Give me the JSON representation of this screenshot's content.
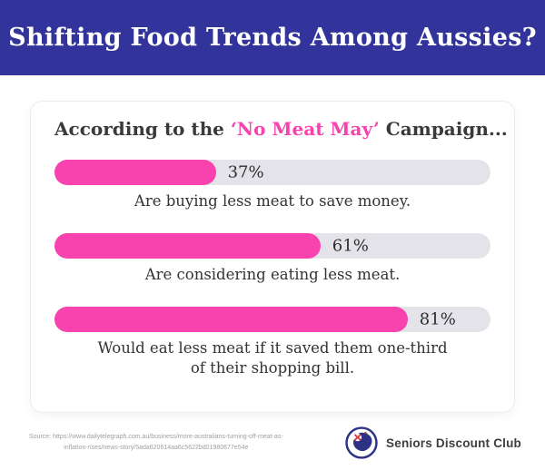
{
  "header": {
    "title": "Shifting Food Trends Among Aussies?",
    "bg_color": "#32339B",
    "text_color": "#FFFFFF"
  },
  "card": {
    "heading": {
      "prefix": "According to the ",
      "highlight": "‘No Meat May’",
      "suffix": " Campaign...",
      "highlight_color": "#F843AF",
      "text_color": "#3A3A3A"
    },
    "bars": [
      {
        "percent": 37,
        "label": "37%",
        "caption": "Are buying less meat to save money."
      },
      {
        "percent": 61,
        "label": "61%",
        "caption": "Are considering eating less meat."
      },
      {
        "percent": 81,
        "label": "81%",
        "caption": "Would eat less meat if it saved them one-third\nof their shopping bill."
      }
    ],
    "bar_color": "#F843AF",
    "track_color": "#E5E3EA"
  },
  "footer": {
    "source_line1": "Source: https://www.dailytelegraph.com.au/business/more-australians-turning-off-meat-as-",
    "source_line2": "inflation-rises/news-story/5ada620614aa6c5622bd01980677e54e",
    "brand": "Seniors Discount Club",
    "logo_colors": {
      "navy": "#2D3384",
      "red": "#D93A3E"
    }
  },
  "chart_data": {
    "type": "bar",
    "orientation": "horizontal",
    "title": "Shifting Food Trends Among Aussies?",
    "subtitle": "According to the ‘No Meat May’ Campaign...",
    "categories": [
      "Are buying less meat to save money.",
      "Are considering eating less meat.",
      "Would eat less meat if it saved them one-third of their shopping bill."
    ],
    "values": [
      37,
      61,
      81
    ],
    "unit": "%",
    "xlim": [
      0,
      100
    ],
    "bar_color": "#F843AF",
    "track_color": "#E5E3EA",
    "value_labels": [
      "37%",
      "61%",
      "81%"
    ],
    "source": "https://www.dailytelegraph.com.au/business/more-australians-turning-off-meat-as-inflation-rises/news-story/5ada620614aa6c5622bd01980677e54e"
  }
}
